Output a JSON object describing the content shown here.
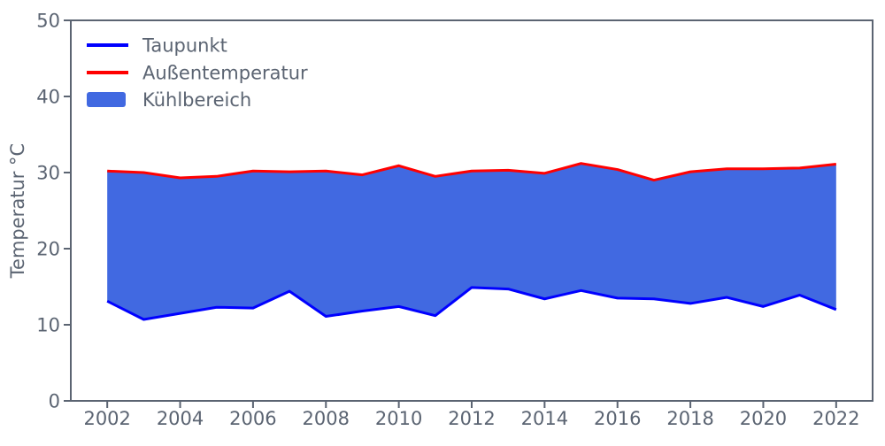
{
  "chart_data": {
    "type": "line",
    "title": "",
    "xlabel": "",
    "ylabel": "Temperatur °C",
    "x": [
      2002,
      2003,
      2004,
      2005,
      2006,
      2007,
      2008,
      2009,
      2010,
      2011,
      2012,
      2013,
      2014,
      2015,
      2016,
      2017,
      2018,
      2019,
      2020,
      2021,
      2022
    ],
    "series": [
      {
        "name": "Taupunkt",
        "color": "#0000ff",
        "values": [
          13.1,
          10.7,
          11.5,
          12.3,
          12.2,
          14.4,
          11.1,
          11.8,
          12.4,
          11.2,
          14.9,
          14.7,
          13.4,
          14.5,
          13.5,
          13.4,
          12.8,
          13.6,
          12.4,
          13.9,
          12.0
        ]
      },
      {
        "name": "Außentemperatur",
        "color": "#ff0000",
        "values": [
          30.2,
          30.0,
          29.3,
          29.5,
          30.2,
          30.1,
          30.2,
          29.7,
          30.9,
          29.5,
          30.2,
          30.3,
          29.9,
          31.2,
          30.4,
          29.0,
          30.1,
          30.5,
          30.5,
          30.6,
          31.1
        ]
      }
    ],
    "area": {
      "name": "Kühlbereich",
      "color": "#4169e1",
      "fill_between": [
        "Taupunkt",
        "Außentemperatur"
      ]
    },
    "xticks": [
      2002,
      2004,
      2006,
      2008,
      2010,
      2012,
      2014,
      2016,
      2018,
      2020,
      2022
    ],
    "yticks": [
      0,
      10,
      20,
      30,
      40,
      50
    ],
    "xlim": [
      2001,
      2023
    ],
    "ylim": [
      0,
      50
    ],
    "grid": false,
    "legend_position": "upper-left",
    "axis_color": "#5b6472",
    "background_color": "#ffffff"
  }
}
